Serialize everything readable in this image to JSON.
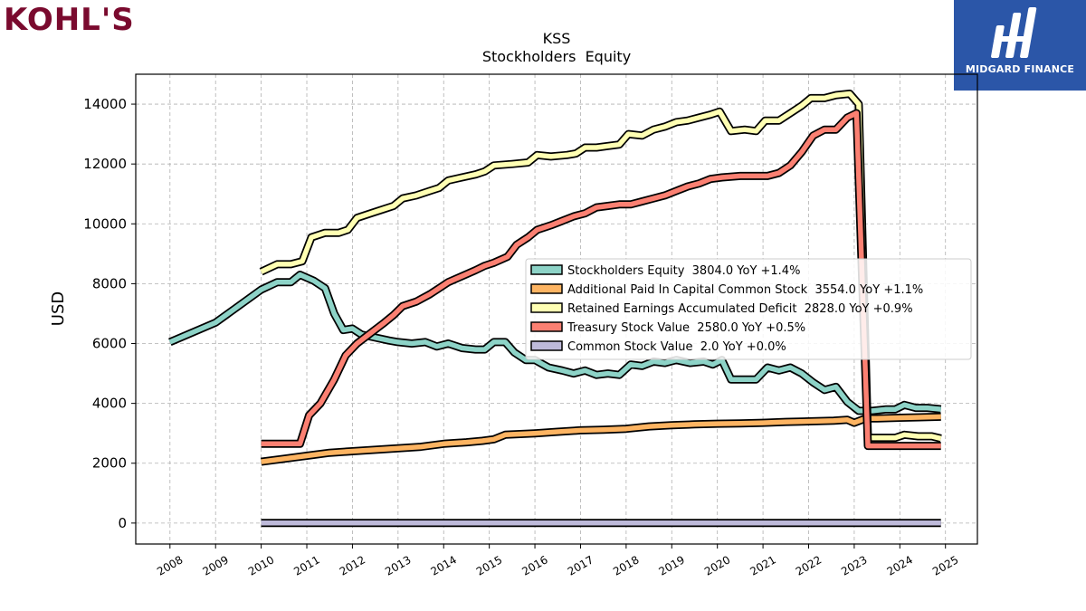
{
  "brand": {
    "logo_text": "KOHL'S",
    "badge_text": "MIDGARD FINANCE"
  },
  "chart_data": {
    "type": "line",
    "title": "KSS",
    "subtitle": "Stockholders  Equity",
    "ylabel": "USD",
    "xlabel": "",
    "xlim": [
      2007.25,
      2025.7
    ],
    "ylim": [
      -700,
      15000
    ],
    "x_ticks": [
      2008,
      2009,
      2010,
      2011,
      2012,
      2013,
      2014,
      2015,
      2016,
      2017,
      2018,
      2019,
      2020,
      2021,
      2022,
      2023,
      2024,
      2025
    ],
    "y_ticks": [
      0,
      2000,
      4000,
      6000,
      8000,
      10000,
      12000,
      14000
    ],
    "grid": true,
    "legend_position": "right",
    "series": [
      {
        "name": "Stockholders Equity  3804.0 YoY +1.4%",
        "color": "#8dd3c7",
        "points": [
          [
            2008.0,
            6050
          ],
          [
            2009.0,
            6700
          ],
          [
            2010.0,
            7800
          ],
          [
            2010.35,
            8050
          ],
          [
            2010.65,
            8050
          ],
          [
            2010.85,
            8300
          ],
          [
            2011.15,
            8100
          ],
          [
            2011.4,
            7850
          ],
          [
            2011.6,
            7000
          ],
          [
            2011.8,
            6450
          ],
          [
            2012.0,
            6500
          ],
          [
            2012.2,
            6300
          ],
          [
            2012.5,
            6200
          ],
          [
            2012.8,
            6100
          ],
          [
            2013.0,
            6050
          ],
          [
            2013.3,
            6000
          ],
          [
            2013.6,
            6050
          ],
          [
            2013.85,
            5900
          ],
          [
            2014.1,
            6000
          ],
          [
            2014.4,
            5850
          ],
          [
            2014.7,
            5800
          ],
          [
            2014.9,
            5800
          ],
          [
            2015.1,
            6050
          ],
          [
            2015.35,
            6050
          ],
          [
            2015.55,
            5700
          ],
          [
            2015.8,
            5450
          ],
          [
            2016.0,
            5450
          ],
          [
            2016.3,
            5200
          ],
          [
            2016.6,
            5100
          ],
          [
            2016.85,
            5000
          ],
          [
            2017.1,
            5100
          ],
          [
            2017.35,
            4950
          ],
          [
            2017.6,
            5000
          ],
          [
            2017.85,
            4950
          ],
          [
            2018.1,
            5300
          ],
          [
            2018.35,
            5250
          ],
          [
            2018.6,
            5400
          ],
          [
            2018.85,
            5350
          ],
          [
            2019.1,
            5450
          ],
          [
            2019.4,
            5350
          ],
          [
            2019.7,
            5400
          ],
          [
            2019.9,
            5300
          ],
          [
            2020.1,
            5450
          ],
          [
            2020.3,
            4800
          ],
          [
            2020.6,
            4800
          ],
          [
            2020.85,
            4800
          ],
          [
            2021.1,
            5200
          ],
          [
            2021.35,
            5100
          ],
          [
            2021.6,
            5200
          ],
          [
            2021.85,
            5000
          ],
          [
            2022.1,
            4700
          ],
          [
            2022.35,
            4450
          ],
          [
            2022.6,
            4550
          ],
          [
            2022.85,
            4050
          ],
          [
            2023.1,
            3750
          ],
          [
            2023.4,
            3750
          ],
          [
            2023.7,
            3800
          ],
          [
            2023.9,
            3800
          ],
          [
            2024.1,
            3950
          ],
          [
            2024.35,
            3850
          ],
          [
            2024.6,
            3850
          ],
          [
            2024.9,
            3804
          ]
        ]
      },
      {
        "name": "Additional Paid In Capital Common Stock  3554.0 YoY +1.1%",
        "color": "#fdb462",
        "points": [
          [
            2010.0,
            2050
          ],
          [
            2010.5,
            2150
          ],
          [
            2011.0,
            2250
          ],
          [
            2011.5,
            2350
          ],
          [
            2012.0,
            2400
          ],
          [
            2012.5,
            2450
          ],
          [
            2013.0,
            2500
          ],
          [
            2013.5,
            2550
          ],
          [
            2014.0,
            2650
          ],
          [
            2014.5,
            2700
          ],
          [
            2014.85,
            2750
          ],
          [
            2015.1,
            2800
          ],
          [
            2015.35,
            2950
          ],
          [
            2016.0,
            3000
          ],
          [
            2016.5,
            3050
          ],
          [
            2017.0,
            3100
          ],
          [
            2017.5,
            3120
          ],
          [
            2018.0,
            3150
          ],
          [
            2018.5,
            3230
          ],
          [
            2019.0,
            3270
          ],
          [
            2019.5,
            3300
          ],
          [
            2020.0,
            3320
          ],
          [
            2020.5,
            3330
          ],
          [
            2021.0,
            3350
          ],
          [
            2021.5,
            3380
          ],
          [
            2022.0,
            3400
          ],
          [
            2022.55,
            3420
          ],
          [
            2022.85,
            3450
          ],
          [
            2023.0,
            3350
          ],
          [
            2023.25,
            3500
          ],
          [
            2023.5,
            3500
          ],
          [
            2024.0,
            3520
          ],
          [
            2024.9,
            3554
          ]
        ]
      },
      {
        "name": "Retained Earnings Accumulated Deficit  2828.0 YoY +0.9%",
        "color": "#ffffb3",
        "points": [
          [
            2010.0,
            8400
          ],
          [
            2010.35,
            8650
          ],
          [
            2010.65,
            8650
          ],
          [
            2010.9,
            8750
          ],
          [
            2011.1,
            9550
          ],
          [
            2011.4,
            9700
          ],
          [
            2011.7,
            9700
          ],
          [
            2011.9,
            9800
          ],
          [
            2012.1,
            10200
          ],
          [
            2012.4,
            10350
          ],
          [
            2012.7,
            10500
          ],
          [
            2012.9,
            10600
          ],
          [
            2013.1,
            10850
          ],
          [
            2013.4,
            10950
          ],
          [
            2013.7,
            11100
          ],
          [
            2013.9,
            11200
          ],
          [
            2014.1,
            11450
          ],
          [
            2014.4,
            11550
          ],
          [
            2014.7,
            11650
          ],
          [
            2014.9,
            11750
          ],
          [
            2015.1,
            11950
          ],
          [
            2015.5,
            12000
          ],
          [
            2015.85,
            12050
          ],
          [
            2016.05,
            12300
          ],
          [
            2016.35,
            12250
          ],
          [
            2016.7,
            12300
          ],
          [
            2016.9,
            12350
          ],
          [
            2017.1,
            12550
          ],
          [
            2017.35,
            12550
          ],
          [
            2017.6,
            12600
          ],
          [
            2017.85,
            12650
          ],
          [
            2018.05,
            13000
          ],
          [
            2018.35,
            12950
          ],
          [
            2018.6,
            13150
          ],
          [
            2018.85,
            13250
          ],
          [
            2019.1,
            13400
          ],
          [
            2019.35,
            13450
          ],
          [
            2019.6,
            13550
          ],
          [
            2019.85,
            13650
          ],
          [
            2020.05,
            13750
          ],
          [
            2020.3,
            13100
          ],
          [
            2020.6,
            13150
          ],
          [
            2020.85,
            13100
          ],
          [
            2021.05,
            13450
          ],
          [
            2021.35,
            13450
          ],
          [
            2021.6,
            13700
          ],
          [
            2021.85,
            13950
          ],
          [
            2022.05,
            14200
          ],
          [
            2022.35,
            14200
          ],
          [
            2022.6,
            14300
          ],
          [
            2022.9,
            14350
          ],
          [
            2023.1,
            14000
          ],
          [
            2023.3,
            2850
          ],
          [
            2023.55,
            2850
          ],
          [
            2023.9,
            2850
          ],
          [
            2024.1,
            2950
          ],
          [
            2024.4,
            2900
          ],
          [
            2024.7,
            2900
          ],
          [
            2024.9,
            2828
          ]
        ]
      },
      {
        "name": "Treasury Stock Value  2580.0 YoY +0.5%",
        "color": "#fb8072",
        "points": [
          [
            2010.0,
            2650
          ],
          [
            2010.5,
            2650
          ],
          [
            2010.85,
            2650
          ],
          [
            2011.05,
            3600
          ],
          [
            2011.3,
            4000
          ],
          [
            2011.6,
            4800
          ],
          [
            2011.85,
            5600
          ],
          [
            2012.1,
            6000
          ],
          [
            2012.4,
            6350
          ],
          [
            2012.7,
            6700
          ],
          [
            2012.9,
            6950
          ],
          [
            2013.1,
            7250
          ],
          [
            2013.4,
            7400
          ],
          [
            2013.7,
            7650
          ],
          [
            2013.9,
            7850
          ],
          [
            2014.1,
            8050
          ],
          [
            2014.4,
            8250
          ],
          [
            2014.7,
            8450
          ],
          [
            2014.9,
            8600
          ],
          [
            2015.1,
            8700
          ],
          [
            2015.4,
            8900
          ],
          [
            2015.6,
            9300
          ],
          [
            2015.85,
            9550
          ],
          [
            2016.05,
            9800
          ],
          [
            2016.35,
            9950
          ],
          [
            2016.6,
            10100
          ],
          [
            2016.85,
            10250
          ],
          [
            2017.1,
            10350
          ],
          [
            2017.35,
            10550
          ],
          [
            2017.6,
            10600
          ],
          [
            2017.85,
            10650
          ],
          [
            2018.1,
            10650
          ],
          [
            2018.35,
            10750
          ],
          [
            2018.6,
            10850
          ],
          [
            2018.85,
            10950
          ],
          [
            2019.1,
            11100
          ],
          [
            2019.35,
            11250
          ],
          [
            2019.6,
            11350
          ],
          [
            2019.85,
            11500
          ],
          [
            2020.1,
            11550
          ],
          [
            2020.5,
            11600
          ],
          [
            2020.9,
            11600
          ],
          [
            2021.1,
            11600
          ],
          [
            2021.35,
            11700
          ],
          [
            2021.6,
            11950
          ],
          [
            2021.85,
            12400
          ],
          [
            2022.1,
            12950
          ],
          [
            2022.35,
            13150
          ],
          [
            2022.6,
            13150
          ],
          [
            2022.85,
            13550
          ],
          [
            2023.05,
            13700
          ],
          [
            2023.3,
            2580
          ],
          [
            2023.6,
            2580
          ],
          [
            2024.0,
            2580
          ],
          [
            2024.4,
            2580
          ],
          [
            2024.9,
            2580
          ]
        ]
      },
      {
        "name": "Common Stock Value  2.0 YoY +0.0%",
        "color": "#bebada",
        "points": [
          [
            2010.0,
            2
          ],
          [
            2024.9,
            2
          ]
        ]
      }
    ]
  }
}
